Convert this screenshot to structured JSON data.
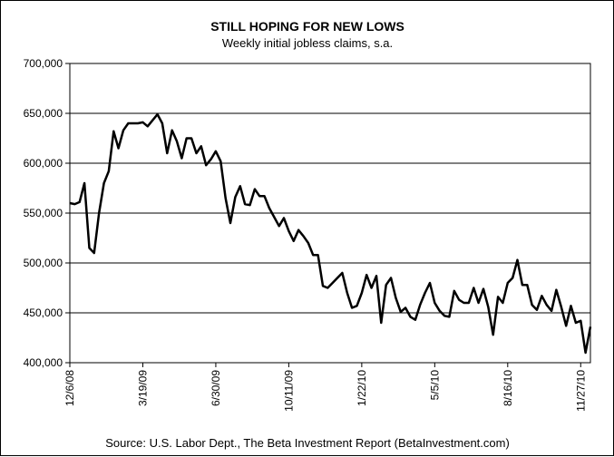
{
  "chart_data": {
    "type": "line",
    "title": "STILL HOPING FOR NEW LOWS",
    "subtitle": "Weekly initial jobless claims, s.a.",
    "source": "Source: U.S. Labor Dept., The Beta Investment Report (BetaInvestment.com)",
    "ylim": [
      400000,
      700000
    ],
    "y_ticks": [
      400000,
      450000,
      500000,
      550000,
      600000,
      650000,
      700000
    ],
    "y_tick_labels": [
      "400,000",
      "450,000",
      "500,000",
      "550,000",
      "600,000",
      "650,000",
      "700,000"
    ],
    "x_tick_labels": [
      "12/6/08",
      "3/19/09",
      "6/30/09",
      "10/11/09",
      "1/22/10",
      "5/5/10",
      "8/16/10",
      "11/27/10"
    ],
    "x_tick_index": [
      0,
      15,
      30,
      45,
      60,
      75,
      90,
      105
    ],
    "grid": true,
    "legend": "none",
    "line_color": "#000000",
    "series": [
      {
        "values": [
          560000,
          559000,
          561000,
          580000,
          515000,
          510000,
          550000,
          580000,
          592000,
          632000,
          615000,
          633000,
          640000,
          640000,
          640000,
          641000,
          637000,
          643000,
          649000,
          640000,
          610000,
          633000,
          622000,
          605000,
          625000,
          625000,
          610000,
          617000,
          598000,
          604000,
          612000,
          602000,
          565000,
          540000,
          566000,
          577000,
          559000,
          558000,
          574000,
          567000,
          567000,
          555000,
          546000,
          537000,
          545000,
          532000,
          522000,
          533000,
          527000,
          520000,
          508000,
          508000,
          477000,
          475000,
          480000,
          485000,
          490000,
          470000,
          455000,
          457000,
          470000,
          488000,
          475000,
          487000,
          440000,
          478000,
          485000,
          465000,
          451000,
          455000,
          446000,
          443000,
          458000,
          470000,
          480000,
          460000,
          452000,
          447000,
          446000,
          472000,
          463000,
          460000,
          460000,
          475000,
          460000,
          474000,
          456000,
          428000,
          466000,
          460000,
          480000,
          485000,
          503000,
          478000,
          478000,
          458000,
          453000,
          467000,
          458000,
          452000,
          473000,
          456000,
          437000,
          457000,
          440000,
          442000,
          410000,
          436000
        ]
      }
    ]
  }
}
